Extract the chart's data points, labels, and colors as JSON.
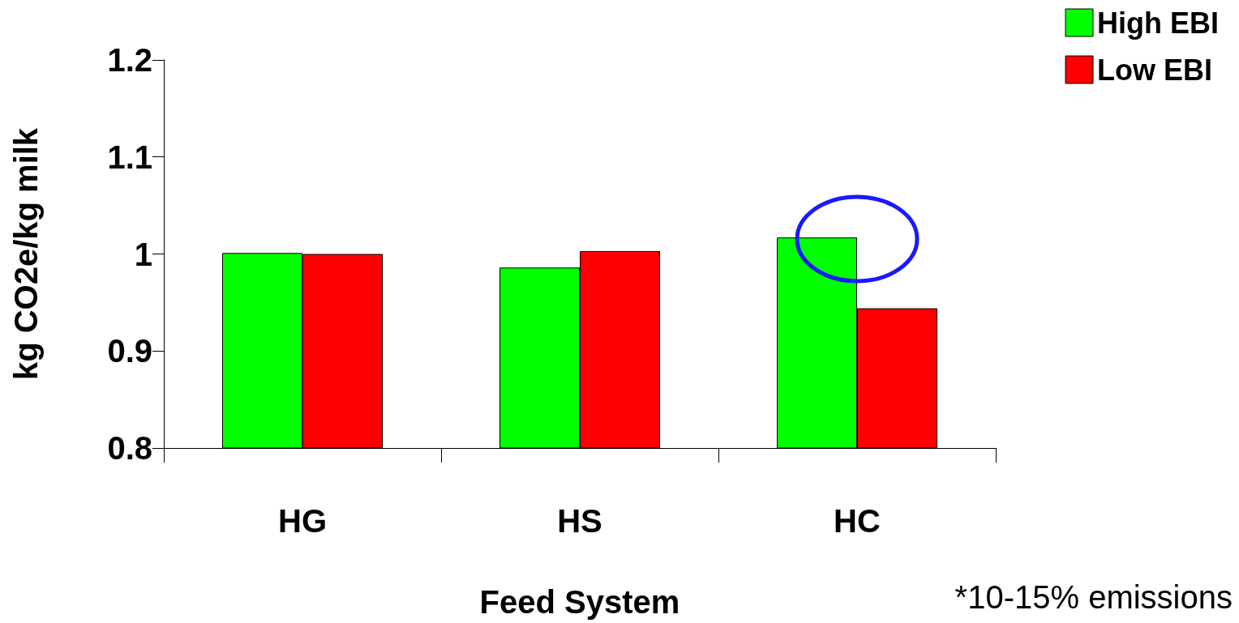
{
  "chart_data": {
    "type": "bar",
    "xlabel": "Feed System",
    "ylabel": "kg CO2e/kg milk",
    "categories": [
      "HG",
      "HS",
      "HC"
    ],
    "series": [
      {
        "name": "High EBI",
        "color": "#00ff00",
        "values": [
          1.001,
          0.986,
          1.017
        ]
      },
      {
        "name": "Low EBI",
        "color": "#ff0000",
        "values": [
          1.0,
          1.003,
          0.944
        ]
      }
    ],
    "ylim": [
      0.8,
      1.2
    ],
    "yticks": [
      0.8,
      0.9,
      1,
      1.1,
      1.2
    ],
    "grid": false,
    "legend": "top right",
    "annotations": [
      "*10-15% emissions"
    ]
  }
}
